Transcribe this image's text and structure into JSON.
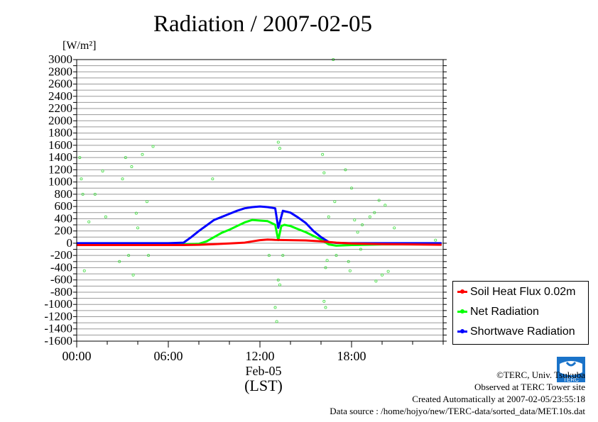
{
  "title": "Radiation / 2007-02-05",
  "chart_data": {
    "type": "line",
    "title": "Radiation / 2007-02-05",
    "ylabel": "[W/m²]",
    "ylim": [
      -1600,
      3000
    ],
    "yticks": [
      3000,
      2800,
      2600,
      2400,
      2200,
      2000,
      1800,
      1600,
      1400,
      1200,
      1000,
      800,
      600,
      400,
      200,
      0,
      -200,
      -400,
      -600,
      -800,
      -1000,
      -1200,
      -1400,
      -1600
    ],
    "xlim": [
      0,
      24
    ],
    "xticks": [
      {
        "hour": 0,
        "label": "00:00"
      },
      {
        "hour": 6,
        "label": "06:00"
      },
      {
        "hour": 12,
        "label": "12:00"
      },
      {
        "hour": 18,
        "label": "18:00"
      }
    ],
    "xlabel_date": "Feb-05",
    "xlabel_unit": "(LST)",
    "grid": true,
    "legend_position": "bottom-right",
    "series": [
      {
        "name": "Soil Heat Flux 0.02m",
        "color": "#ff0000",
        "x": [
          0,
          2,
          4,
          6,
          7,
          8,
          9,
          10,
          11,
          11.5,
          12,
          12.5,
          13,
          14,
          15,
          16,
          17,
          18,
          20,
          22,
          23.9
        ],
        "y": [
          -30,
          -30,
          -30,
          -30,
          -30,
          -25,
          -15,
          -5,
          10,
          30,
          50,
          60,
          55,
          50,
          45,
          30,
          10,
          -5,
          -15,
          -20,
          -25
        ]
      },
      {
        "name": "Net Radiation",
        "color": "#00ff00",
        "x": [
          0,
          2,
          4,
          6,
          7,
          8,
          8.5,
          9,
          9.5,
          10,
          10.5,
          11,
          11.5,
          12,
          12.5,
          13,
          13.2,
          13.4,
          13.6,
          14,
          14.5,
          15,
          15.5,
          16,
          16.5,
          17,
          18,
          20,
          22,
          23.9
        ],
        "y": [
          -20,
          -20,
          -20,
          -20,
          -20,
          -10,
          30,
          100,
          170,
          220,
          280,
          340,
          380,
          370,
          360,
          300,
          50,
          280,
          300,
          280,
          230,
          180,
          120,
          60,
          -20,
          -40,
          -30,
          -20,
          -20,
          -20
        ]
      },
      {
        "name": "Shortwave Radiation",
        "color": "#0000ff",
        "x": [
          0,
          2,
          4,
          6,
          7,
          7.5,
          8,
          8.5,
          9,
          9.5,
          10,
          10.5,
          11,
          11.5,
          12,
          12.5,
          13,
          13.2,
          13.5,
          14,
          14.5,
          15,
          15.5,
          16,
          16.5,
          17,
          18,
          20,
          22,
          23.9
        ],
        "y": [
          0,
          0,
          0,
          0,
          10,
          100,
          200,
          290,
          380,
          430,
          480,
          530,
          570,
          590,
          600,
          590,
          570,
          250,
          530,
          500,
          420,
          330,
          200,
          100,
          20,
          5,
          0,
          0,
          0,
          0
        ]
      }
    ],
    "scatter_points": [
      {
        "x": 0.2,
        "y": 1400
      },
      {
        "x": 0.4,
        "y": 800
      },
      {
        "x": 0.3,
        "y": 1050
      },
      {
        "x": 0.5,
        "y": -450
      },
      {
        "x": 0.8,
        "y": 350
      },
      {
        "x": 1.2,
        "y": 800
      },
      {
        "x": 1.7,
        "y": 1180
      },
      {
        "x": 1.9,
        "y": 430
      },
      {
        "x": 2.8,
        "y": -300
      },
      {
        "x": 3.0,
        "y": 1050
      },
      {
        "x": 3.2,
        "y": 1400
      },
      {
        "x": 3.4,
        "y": -200
      },
      {
        "x": 3.6,
        "y": 1250
      },
      {
        "x": 3.7,
        "y": -520
      },
      {
        "x": 3.9,
        "y": 490
      },
      {
        "x": 4.0,
        "y": 250
      },
      {
        "x": 4.3,
        "y": 1450
      },
      {
        "x": 4.6,
        "y": 680
      },
      {
        "x": 4.7,
        "y": -200
      },
      {
        "x": 5.0,
        "y": 1580
      },
      {
        "x": 8.9,
        "y": 1050
      },
      {
        "x": 12.6,
        "y": -200
      },
      {
        "x": 13.0,
        "y": -1050
      },
      {
        "x": 13.1,
        "y": -1280
      },
      {
        "x": 13.2,
        "y": -600
      },
      {
        "x": 13.3,
        "y": -680
      },
      {
        "x": 13.2,
        "y": 1650
      },
      {
        "x": 13.3,
        "y": 1550
      },
      {
        "x": 13.5,
        "y": -200
      },
      {
        "x": 16.1,
        "y": 1450
      },
      {
        "x": 16.2,
        "y": 1150
      },
      {
        "x": 16.3,
        "y": -1050
      },
      {
        "x": 16.2,
        "y": -950
      },
      {
        "x": 16.3,
        "y": -400
      },
      {
        "x": 16.4,
        "y": -280
      },
      {
        "x": 16.5,
        "y": 430
      },
      {
        "x": 16.8,
        "y": 3000
      },
      {
        "x": 16.9,
        "y": 680
      },
      {
        "x": 17.0,
        "y": -200
      },
      {
        "x": 17.6,
        "y": 1200
      },
      {
        "x": 17.8,
        "y": -300
      },
      {
        "x": 17.9,
        "y": -450
      },
      {
        "x": 18.0,
        "y": 900
      },
      {
        "x": 18.2,
        "y": 380
      },
      {
        "x": 18.4,
        "y": 180
      },
      {
        "x": 18.6,
        "y": -100
      },
      {
        "x": 18.7,
        "y": 300
      },
      {
        "x": 19.2,
        "y": 430
      },
      {
        "x": 19.5,
        "y": 500
      },
      {
        "x": 19.6,
        "y": -620
      },
      {
        "x": 19.8,
        "y": 700
      },
      {
        "x": 20.0,
        "y": -520
      },
      {
        "x": 20.2,
        "y": 620
      },
      {
        "x": 20.4,
        "y": -460
      },
      {
        "x": 20.8,
        "y": 250
      },
      {
        "x": 23.5,
        "y": 50
      }
    ]
  },
  "legend": {
    "items": [
      {
        "label": "Soil Heat Flux 0.02m",
        "color": "#ff0000"
      },
      {
        "label": "Net Radiation",
        "color": "#00ff00"
      },
      {
        "label": "Shortwave Radiation",
        "color": "#0000ff"
      }
    ]
  },
  "credits": {
    "copyright": "©TERC, Univ. Tsukuba",
    "observed": "Observed at TERC Tower site",
    "created": "Created Automatically at 2007-02-05/23:55:18",
    "source": "Data source : /home/hojyo/new/TERC-data/sorted_data/MET.10s.dat"
  },
  "logo": {
    "text": "TERC"
  }
}
